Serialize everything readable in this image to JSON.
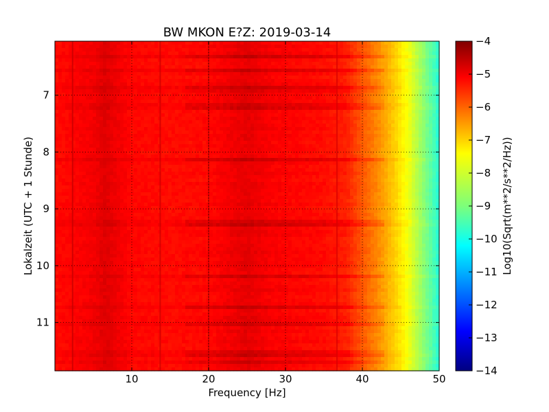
{
  "chart_data": {
    "type": "heatmap",
    "title": "BW MKON E?Z: 2019-03-14",
    "xlabel": "Frequency [Hz]",
    "ylabel": "Lokalzeit (UTC + 1 Stunde)",
    "xlim": [
      0,
      50
    ],
    "ylim": [
      11.85,
      6.05
    ],
    "xticks": [
      10,
      20,
      30,
      40,
      50
    ],
    "xtick_labels": [
      "10",
      "20",
      "30",
      "40",
      "50"
    ],
    "yticks": [
      7,
      8,
      9,
      10,
      11
    ],
    "ytick_labels": [
      "7",
      "8",
      "9",
      "10",
      "11"
    ],
    "grid": true,
    "grid_style": "dotted",
    "colormap": "jet",
    "colorbar": {
      "label": "Log10(Sqrt(m**2/s**2/Hz))",
      "range": [
        -14,
        -4
      ],
      "ticks": [
        -4,
        -5,
        -6,
        -7,
        -8,
        -9,
        -10,
        -11,
        -12,
        -13,
        -14
      ],
      "tick_labels": [
        "−4",
        "−5",
        "−6",
        "−7",
        "−8",
        "−9",
        "−10",
        "−11",
        "−12",
        "−13",
        "−14"
      ]
    },
    "frequency_profile": {
      "frequency_hz": [
        0,
        5,
        6.5,
        10,
        15,
        20,
        25,
        28,
        35,
        38,
        40,
        42,
        44,
        46,
        48,
        50
      ],
      "log10_amplitude": [
        -5.35,
        -5.15,
        -4.95,
        -5.3,
        -5.35,
        -5.3,
        -5.0,
        -5.2,
        -5.35,
        -5.55,
        -6.1,
        -6.6,
        -7.2,
        -7.9,
        -8.9,
        -9.9
      ]
    },
    "spectral_lines_hz": [
      2.3,
      13.7,
      20.0,
      36.7
    ],
    "colors": {
      "dark_red": "#800000",
      "red": "#ff3000",
      "orange": "#ff9000",
      "yellow": "#ffff00",
      "cyan": "#00ffff",
      "blue": "#0000ff",
      "navy": "#000080"
    }
  }
}
